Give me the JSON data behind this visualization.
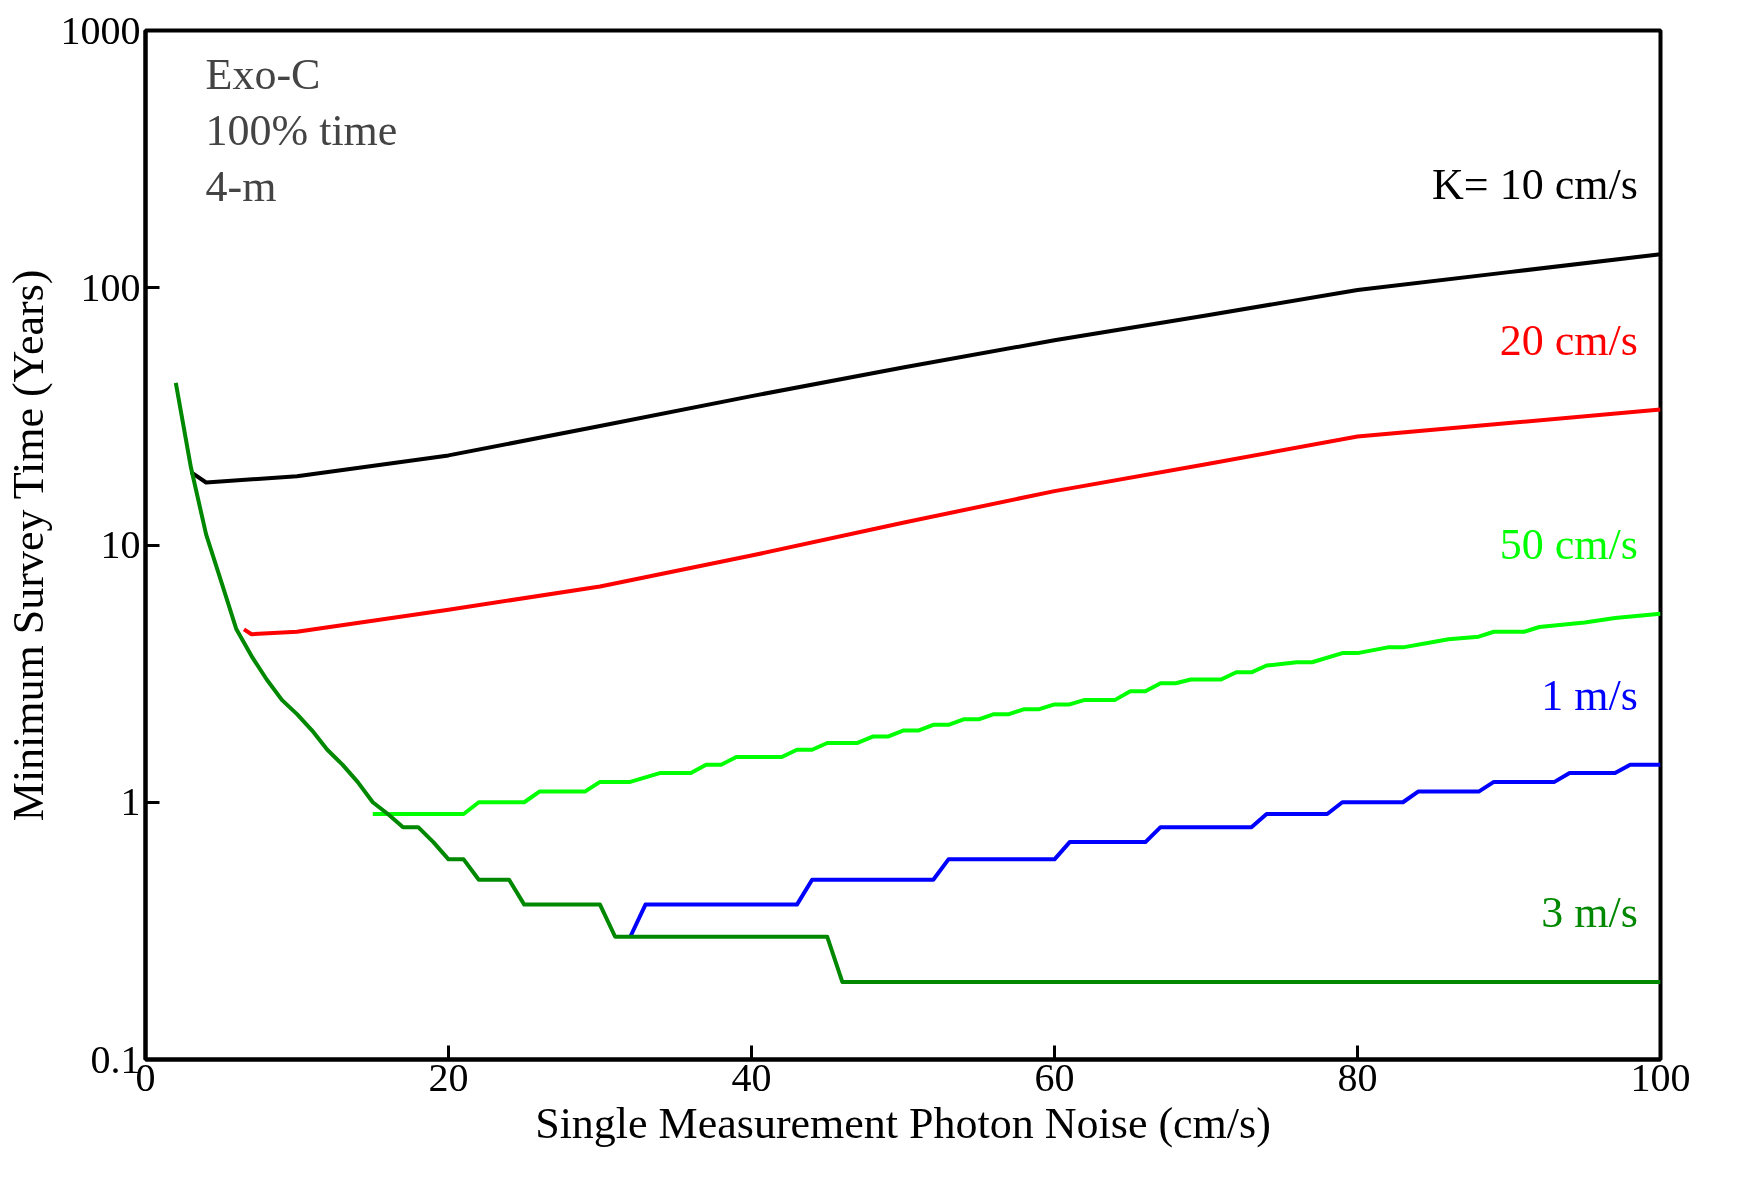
{
  "chart_data": {
    "type": "line",
    "xlabel": "Single Measurement Photon Noise (cm/s)",
    "ylabel": "Minimum Survey Time (Years)",
    "xlim": [
      0,
      100
    ],
    "ylim": [
      0.1,
      1000
    ],
    "xticks": [
      0,
      20,
      40,
      60,
      80,
      100
    ],
    "yticks": [
      0.1,
      1,
      10,
      100,
      1000
    ],
    "log": "y",
    "grid": false,
    "marker": "none",
    "line_style": "solid",
    "annotations": [
      "Exo-C",
      "100% time",
      "4-m"
    ],
    "series": [
      {
        "name": "K= 10 cm/s",
        "color": "#000000",
        "x": [
          3,
          4,
          10,
          20,
          30,
          40,
          50,
          60,
          70,
          80,
          90,
          100
        ],
        "values": [
          19.2,
          17.5,
          18.5,
          22.3,
          29,
          37.9,
          49,
          62.5,
          78,
          98,
          115,
          135
        ]
      },
      {
        "name": "20 cm/s",
        "color": "#ff0000",
        "x": [
          6.5,
          7,
          10,
          20,
          30,
          40,
          50,
          60,
          70,
          80,
          90,
          100
        ],
        "values": [
          4.7,
          4.5,
          4.6,
          5.6,
          6.9,
          9.1,
          12.2,
          16.2,
          20.6,
          26.4,
          29.8,
          33.6
        ]
      },
      {
        "name": "50 cm/s",
        "color": "#00ff00",
        "x": [
          15,
          21,
          22,
          25,
          26,
          29,
          30,
          32,
          34,
          36,
          37,
          38,
          39,
          42,
          43,
          44,
          45,
          47,
          48,
          49,
          50,
          51,
          52,
          53,
          54,
          55,
          56,
          57,
          58,
          59,
          60,
          61,
          62,
          64,
          65,
          66,
          67,
          68,
          69,
          71,
          72,
          73,
          74,
          76,
          77,
          79,
          80,
          82,
          83,
          85,
          86,
          88,
          89,
          91,
          92,
          95,
          97,
          100
        ],
        "values": [
          0.9,
          0.9,
          1.0,
          1.0,
          1.1,
          1.1,
          1.2,
          1.2,
          1.3,
          1.3,
          1.4,
          1.4,
          1.5,
          1.5,
          1.6,
          1.6,
          1.7,
          1.7,
          1.8,
          1.8,
          1.9,
          1.9,
          2.0,
          2.0,
          2.1,
          2.1,
          2.2,
          2.2,
          2.3,
          2.3,
          2.4,
          2.4,
          2.5,
          2.5,
          2.7,
          2.7,
          2.9,
          2.9,
          3.0,
          3.0,
          3.2,
          3.2,
          3.4,
          3.5,
          3.5,
          3.8,
          3.8,
          4.0,
          4.0,
          4.2,
          4.3,
          4.4,
          4.6,
          4.6,
          4.8,
          5.0,
          5.2,
          5.4
        ]
      },
      {
        "name": "1 m/s",
        "color": "#0000ff",
        "x": [
          32,
          33,
          43,
          44,
          52,
          53,
          60,
          61,
          66,
          67,
          73,
          74,
          78,
          79,
          83,
          84,
          88,
          89,
          93,
          94,
          97,
          98,
          100
        ],
        "values": [
          0.3,
          0.4,
          0.4,
          0.5,
          0.5,
          0.6,
          0.6,
          0.7,
          0.7,
          0.8,
          0.8,
          0.9,
          0.9,
          1.0,
          1.0,
          1.1,
          1.1,
          1.2,
          1.2,
          1.3,
          1.3,
          1.4,
          1.4
        ]
      },
      {
        "name": "3 m/s",
        "color": "#008800",
        "x": [
          2,
          3,
          4,
          5,
          6,
          7,
          8,
          9,
          10,
          11,
          12,
          13,
          14,
          15,
          16,
          17,
          18,
          19,
          20,
          21,
          22,
          24,
          25,
          30,
          31,
          45,
          46,
          100
        ],
        "values": [
          42.7,
          20,
          11,
          7.2,
          4.7,
          3.7,
          3.0,
          2.5,
          2.2,
          1.9,
          1.6,
          1.4,
          1.2,
          1.0,
          0.9,
          0.8,
          0.8,
          0.7,
          0.6,
          0.6,
          0.5,
          0.5,
          0.4,
          0.4,
          0.3,
          0.3,
          0.2,
          0.2
        ]
      }
    ]
  }
}
